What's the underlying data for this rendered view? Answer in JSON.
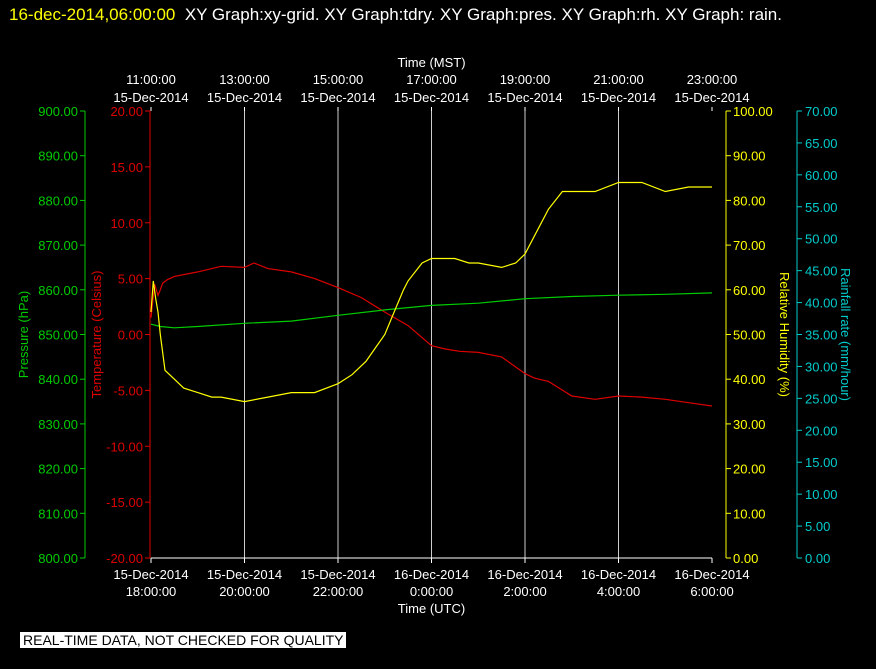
{
  "header": {
    "timestamp": "16-dec-2014,06:00:00",
    "titles": "XY Graph:xy-grid.  XY Graph:tdry.  XY Graph:pres.  XY Graph:rh.  XY Graph: rain."
  },
  "footer_note": "REAL-TIME DATA, NOT CHECKED FOR QUALITY",
  "colors": {
    "background": "#000000",
    "grid": "#cccccc",
    "temperature": "#dd0000",
    "pressure": "#00cc00",
    "humidity": "#ffff00",
    "rain": "#00cccc",
    "text": "#ffffff"
  },
  "chart_data": {
    "type": "line",
    "grid": true,
    "top_axis": {
      "label": "Time (MST)",
      "ticks": [
        {
          "time": "11:00:00",
          "date": "15-Dec-2014"
        },
        {
          "time": "13:00:00",
          "date": "15-Dec-2014"
        },
        {
          "time": "15:00:00",
          "date": "15-Dec-2014"
        },
        {
          "time": "17:00:00",
          "date": "15-Dec-2014"
        },
        {
          "time": "19:00:00",
          "date": "15-Dec-2014"
        },
        {
          "time": "21:00:00",
          "date": "15-Dec-2014"
        },
        {
          "time": "23:00:00",
          "date": "15-Dec-2014"
        }
      ]
    },
    "bottom_axis": {
      "label": "Time (UTC)",
      "range_hours": [
        0,
        12
      ],
      "ticks": [
        {
          "date": "15-Dec-2014",
          "time": "18:00:00"
        },
        {
          "date": "15-Dec-2014",
          "time": "20:00:00"
        },
        {
          "date": "15-Dec-2014",
          "time": "22:00:00"
        },
        {
          "date": "16-Dec-2014",
          "time": "0:00:00"
        },
        {
          "date": "16-Dec-2014",
          "time": "2:00:00"
        },
        {
          "date": "16-Dec-2014",
          "time": "4:00:00"
        },
        {
          "date": "16-Dec-2014",
          "time": "6:00:00"
        }
      ]
    },
    "axes": {
      "pressure": {
        "label": "Pressure (hPa)",
        "min": 800,
        "max": 900,
        "ticks": [
          "800.00",
          "810.00",
          "820.00",
          "830.00",
          "840.00",
          "850.00",
          "860.00",
          "870.00",
          "880.00",
          "890.00",
          "900.00"
        ]
      },
      "temperature": {
        "label": "Temperature (Celsius)",
        "min": -20,
        "max": 20,
        "ticks": [
          "-20.00",
          "-15.00",
          "-10.00",
          "-5.00",
          "0.00",
          "5.00",
          "10.00",
          "15.00",
          "20.00"
        ]
      },
      "humidity": {
        "label": "Relative Humidity (%)",
        "min": 0,
        "max": 100,
        "ticks": [
          "0.00",
          "10.00",
          "20.00",
          "30.00",
          "40.00",
          "50.00",
          "60.00",
          "70.00",
          "80.00",
          "90.00",
          "100.00"
        ]
      },
      "rain": {
        "label": "Rainfall rate (mm/hour)",
        "min": 0,
        "max": 70,
        "ticks": [
          "0.00",
          "5.00",
          "10.00",
          "15.00",
          "20.00",
          "25.00",
          "30.00",
          "35.00",
          "40.00",
          "45.00",
          "50.00",
          "55.00",
          "60.00",
          "65.00",
          "70.00"
        ]
      }
    },
    "series": [
      {
        "name": "tdry",
        "axis": "temperature",
        "x": [
          0,
          0.08,
          0.15,
          0.2,
          0.25,
          0.35,
          0.5,
          1,
          1.5,
          2,
          2.2,
          2.5,
          3,
          3.5,
          4,
          4.5,
          5,
          5.5,
          6,
          6.3,
          6.6,
          7,
          7.5,
          8,
          8.2,
          8.5,
          9,
          9.5,
          10,
          10.5,
          11,
          11.5,
          12
        ],
        "y": [
          1.5,
          4.5,
          3.5,
          4,
          4.6,
          4.9,
          5.2,
          5.6,
          6.1,
          6.0,
          6.4,
          5.9,
          5.6,
          5.0,
          4.2,
          3.3,
          2.0,
          0.8,
          -1.0,
          -1.3,
          -1.5,
          -1.6,
          -2.0,
          -3.5,
          -3.9,
          -4.2,
          -5.5,
          -5.8,
          -5.5,
          -5.6,
          -5.8,
          -6.1,
          -6.4
        ]
      },
      {
        "name": "pres",
        "axis": "pressure",
        "x": [
          0,
          0.2,
          0.5,
          1,
          2,
          3,
          4,
          5,
          6,
          7,
          8,
          9,
          10,
          11,
          12
        ],
        "y": [
          852.3,
          851.8,
          851.5,
          851.8,
          852.5,
          853.0,
          854.3,
          855.5,
          856.5,
          857.0,
          858.0,
          858.5,
          858.8,
          859.0,
          859.3
        ]
      },
      {
        "name": "rh",
        "axis": "humidity",
        "x": [
          0,
          0.05,
          0.1,
          0.15,
          0.2,
          0.3,
          0.5,
          0.7,
          1,
          1.3,
          1.5,
          2,
          2.5,
          3,
          3.5,
          4,
          4.3,
          4.6,
          4.8,
          5,
          5.2,
          5.4,
          5.5,
          5.8,
          6,
          6.2,
          6.5,
          6.8,
          7,
          7.5,
          7.8,
          8,
          8.2,
          8.5,
          8.8,
          9,
          9.5,
          10,
          10.5,
          11,
          11.5,
          12
        ],
        "y": [
          55,
          62,
          58,
          55,
          50,
          42,
          40,
          38,
          37,
          36,
          36,
          35,
          36,
          37,
          37,
          39,
          41,
          44,
          47,
          50,
          55,
          60,
          62,
          66,
          67,
          67,
          67,
          66,
          66,
          65,
          66,
          68,
          72,
          78,
          82,
          82,
          82,
          84,
          84,
          82,
          83,
          83
        ]
      },
      {
        "name": "rain",
        "axis": "rain",
        "x": [
          0,
          12
        ],
        "y": [
          0,
          0
        ]
      }
    ]
  }
}
